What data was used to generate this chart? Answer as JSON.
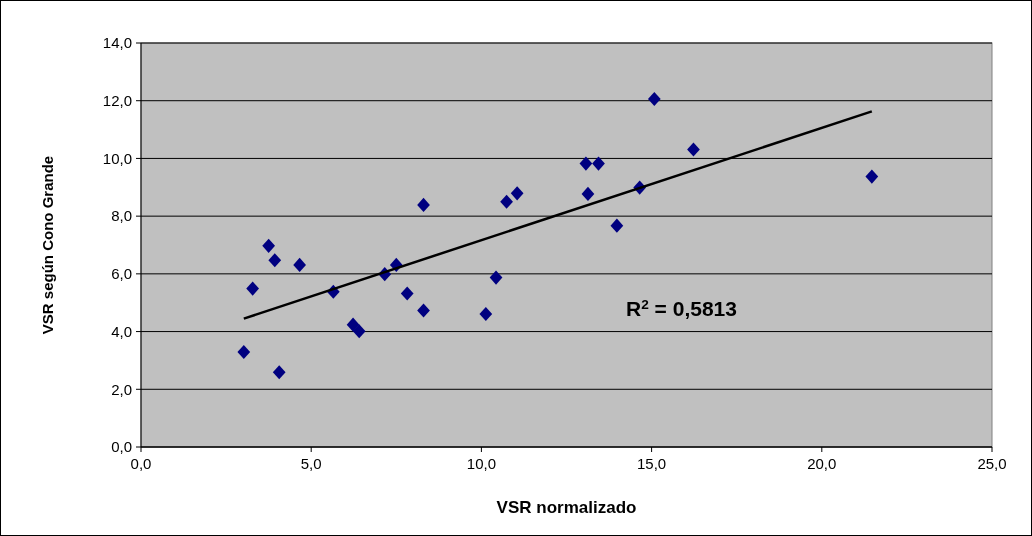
{
  "chart_data": {
    "type": "scatter",
    "xlabel": "VSR normalizado",
    "ylabel": "VSR según Cono Grande",
    "xlim": [
      0,
      25
    ],
    "ylim": [
      0,
      14
    ],
    "xticks": [
      {
        "value": 0,
        "label": "0,0"
      },
      {
        "value": 5,
        "label": "5,0"
      },
      {
        "value": 10,
        "label": "10,0"
      },
      {
        "value": 15,
        "label": "15,0"
      },
      {
        "value": 20,
        "label": "20,0"
      },
      {
        "value": 25,
        "label": "25,0"
      }
    ],
    "yticks": [
      {
        "value": 0,
        "label": "0,0"
      },
      {
        "value": 2,
        "label": "2,0"
      },
      {
        "value": 4,
        "label": "4,0"
      },
      {
        "value": 6,
        "label": "6,0"
      },
      {
        "value": 8,
        "label": "8,0"
      },
      {
        "value": 10,
        "label": "10,0"
      },
      {
        "value": 12,
        "label": "12,0"
      },
      {
        "value": 14,
        "label": "14,0"
      }
    ],
    "grid": "y",
    "marker": "diamond",
    "annotations": [
      "R$^{2}$ = 0,5813"
    ],
    "series": [
      {
        "color": "#000080",
        "x": [
          3.02,
          3.28,
          3.75,
          3.93,
          4.06,
          4.66,
          5.65,
          6.23,
          6.41,
          7.16,
          7.5,
          7.82,
          8.3,
          8.3,
          10.13,
          10.43,
          10.74,
          11.05,
          13.07,
          13.44,
          13.13,
          13.98,
          14.65,
          15.08,
          16.23,
          21.47
        ],
        "values": [
          3.29,
          5.49,
          6.97,
          6.47,
          2.59,
          6.31,
          5.38,
          4.24,
          4.01,
          5.99,
          6.31,
          5.32,
          8.39,
          4.73,
          4.61,
          5.87,
          8.5,
          8.79,
          9.82,
          9.82,
          8.77,
          7.67,
          8.99,
          12.06,
          10.31,
          9.37
        ]
      },
      {
        "type": "line",
        "color": "#000000",
        "marker": "none",
        "x": [
          3.02,
          21.47
        ],
        "values": [
          4.45,
          11.63
        ]
      }
    ]
  }
}
